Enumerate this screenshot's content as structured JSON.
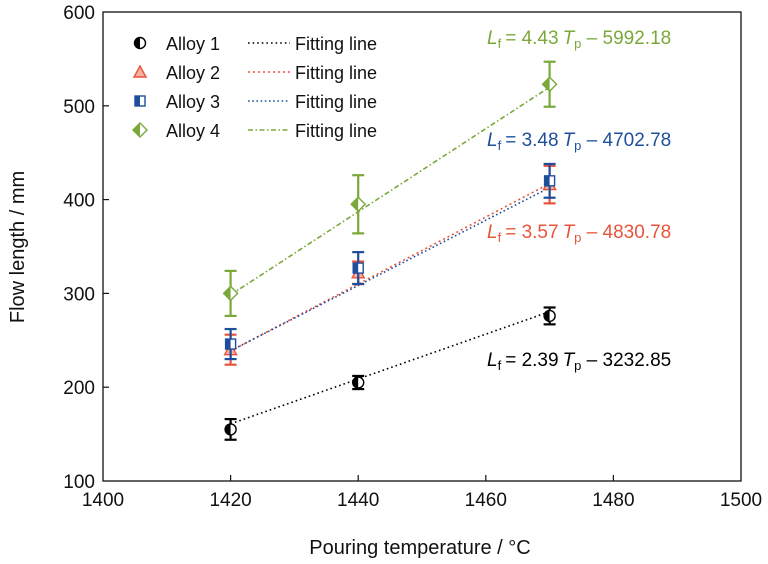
{
  "chart_data": {
    "type": "scatter",
    "xlabel": "Pouring temperature / °C",
    "ylabel": "Flow length / mm",
    "xlim": [
      1400,
      1500
    ],
    "ylim": [
      100,
      600
    ],
    "x_ticks": [
      "1400",
      "1420",
      "1440",
      "1460",
      "1480",
      "1500"
    ],
    "y_ticks": [
      "100",
      "200",
      "300",
      "400",
      "500",
      "600"
    ],
    "grid": false,
    "legend_position": "top-left",
    "fit_label": "Fitting line",
    "series": [
      {
        "name": "Alloy 1",
        "color": "#000000",
        "marker": "half-circle",
        "x": [
          1420,
          1440,
          1470
        ],
        "y": [
          155,
          205,
          276
        ],
        "err": [
          11,
          7,
          9
        ],
        "fit": {
          "slope": 2.39,
          "intercept": -3232.85
        },
        "equation": {
          "lhs": "L",
          "lhs_sub": "f",
          "coef": "= 2.39",
          "var": "T",
          "var_sub": "p",
          "rest": " – 3232.85"
        }
      },
      {
        "name": "Alloy 2",
        "color": "#e8543a",
        "marker": "triangle",
        "x": [
          1420,
          1440,
          1470
        ],
        "y": [
          240,
          322,
          416
        ],
        "err": [
          16,
          12,
          20
        ],
        "fit": {
          "slope": 3.57,
          "intercept": -4830.78
        },
        "equation": {
          "lhs": "L",
          "lhs_sub": "f",
          "coef": "= 3.57",
          "var": "T",
          "var_sub": "p",
          "rest": " – 4830.78"
        }
      },
      {
        "name": "Alloy 3",
        "color": "#1f4e9c",
        "marker": "half-square",
        "x": [
          1420,
          1440,
          1470
        ],
        "y": [
          246,
          327,
          420
        ],
        "err": [
          16,
          17,
          18
        ],
        "fit": {
          "slope": 3.48,
          "intercept": -4702.78
        },
        "equation": {
          "lhs": "L",
          "lhs_sub": "f",
          "coef": "= 3.48",
          "var": "T",
          "var_sub": "p",
          "rest": " – 4702.78"
        }
      },
      {
        "name": "Alloy 4",
        "color": "#7aa83a",
        "marker": "half-diamond",
        "x": [
          1420,
          1440,
          1470
        ],
        "y": [
          300,
          395,
          523
        ],
        "err": [
          24,
          31,
          24
        ],
        "fit": {
          "slope": 4.43,
          "intercept": -5992.18
        },
        "equation": {
          "lhs": "L",
          "lhs_sub": "f",
          "coef": "= 4.43",
          "var": "T",
          "var_sub": "p",
          "rest": " – 5992.18"
        }
      }
    ]
  }
}
